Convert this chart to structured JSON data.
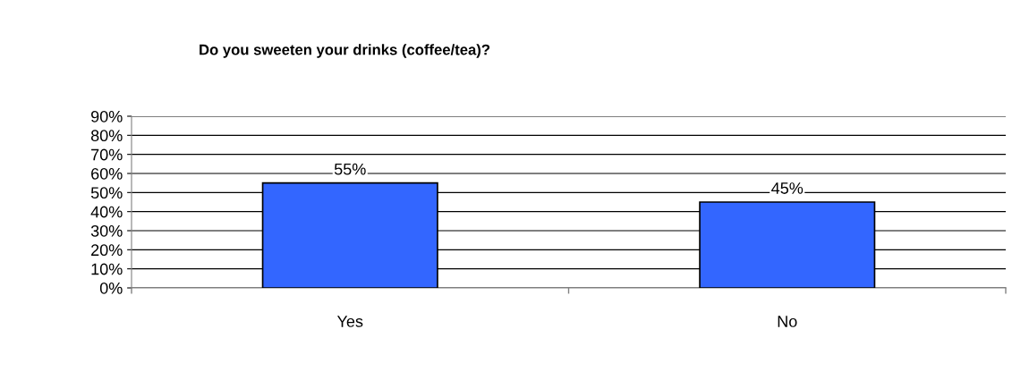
{
  "chart_data": {
    "type": "bar",
    "title": "Do you sweeten your drinks (coffee/tea)?",
    "categories": [
      "Yes",
      "No"
    ],
    "values": [
      55,
      45
    ],
    "value_labels": [
      "55%",
      "45%"
    ],
    "color": "#3366ff",
    "ylim": [
      0,
      90
    ],
    "yticks": [
      {
        "value": 0,
        "label": "0%"
      },
      {
        "value": 10,
        "label": "10%"
      },
      {
        "value": 20,
        "label": "20%"
      },
      {
        "value": 30,
        "label": "30%"
      },
      {
        "value": 40,
        "label": "40%"
      },
      {
        "value": 50,
        "label": "50%"
      },
      {
        "value": 60,
        "label": "60%"
      },
      {
        "value": 70,
        "label": "70%"
      },
      {
        "value": 80,
        "label": "80%"
      },
      {
        "value": 90,
        "label": "90%"
      }
    ],
    "grid": "y",
    "legend": false
  }
}
